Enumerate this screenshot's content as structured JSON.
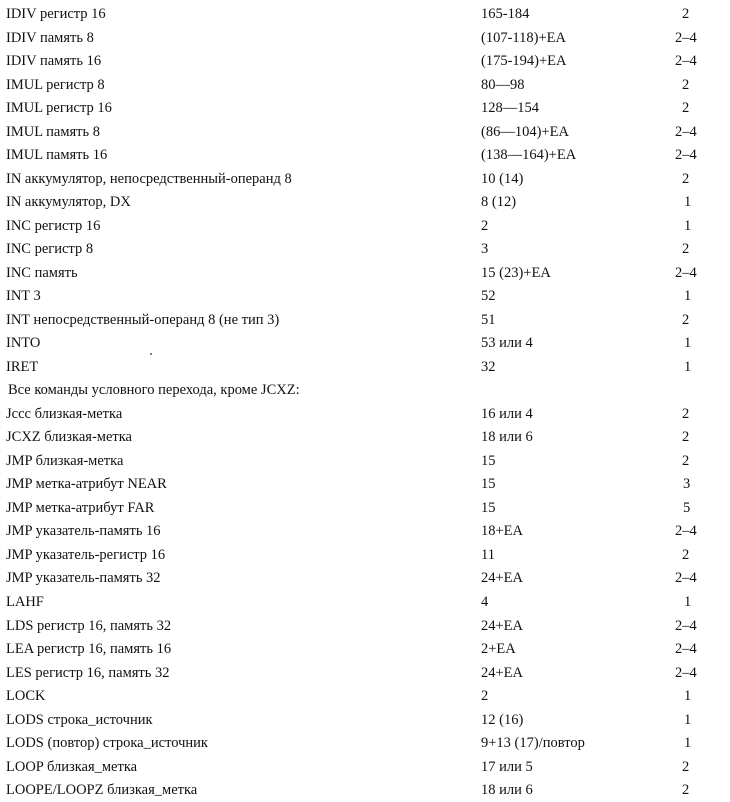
{
  "rows": [
    {
      "instr": "IDIV регистр 16",
      "timing": "165-184",
      "bytes": "2"
    },
    {
      "instr": "IDIV память 8",
      "timing": "(107-118)+EA",
      "bytes": "2–4"
    },
    {
      "instr": "IDIV память 16",
      "timing": "(175-194)+EA",
      "bytes": "2–4"
    },
    {
      "instr": "IMUL регистр 8",
      "timing": "80—98",
      "bytes": "2"
    },
    {
      "instr": "IMUL регистр 16",
      "timing": "128—154",
      "bytes": "2"
    },
    {
      "instr": "IMUL память 8",
      "timing": "(86—104)+EA",
      "bytes": "2–4"
    },
    {
      "instr": "IMUL память 16",
      "timing": "(138—164)+EA",
      "bytes": "2–4"
    },
    {
      "instr": "IN аккумулятор, непосредственный-операнд 8",
      "timing": "10 (14)",
      "bytes": "2"
    },
    {
      "instr": "IN аккумулятор, DX",
      "timing": "8 (12)",
      "bytes": "1"
    },
    {
      "instr": "INC регистр 16",
      "timing": "2",
      "bytes": "1"
    },
    {
      "instr": "INC регистр 8",
      "timing": "3",
      "bytes": "2"
    },
    {
      "instr": "INC память",
      "timing": "15 (23)+EA",
      "bytes": "2–4"
    },
    {
      "instr": "INT 3",
      "timing": "52",
      "bytes": "1"
    },
    {
      "instr": "INT непосредственный-операнд 8 (не тип 3)",
      "timing": "51",
      "bytes": "2"
    },
    {
      "instr": "INTO",
      "timing": "53 или 4",
      "bytes": "1"
    },
    {
      "instr": "IRET",
      "timing": "32",
      "bytes": "1"
    },
    {
      "instr": "Все команды условного перехода, кроме JCXZ:",
      "timing": "",
      "bytes": ""
    },
    {
      "instr": "Jccc близкая-метка",
      "timing": "16 или 4",
      "bytes": "2"
    },
    {
      "instr": "JCXZ близкая-метка",
      "timing": "18 или 6",
      "bytes": "2"
    },
    {
      "instr": "JMP близкая-метка",
      "timing": "15",
      "bytes": "2"
    },
    {
      "instr": "JMP метка-атрибут NEAR",
      "timing": "15",
      "bytes": "3"
    },
    {
      "instr": "JMP метка-атрибут FAR",
      "timing": "15",
      "bytes": "5"
    },
    {
      "instr": "JMP указатель-память 16",
      "timing": "18+EA",
      "bytes": "2–4"
    },
    {
      "instr": "JMP указатель-регистр 16",
      "timing": "11",
      "bytes": "2"
    },
    {
      "instr": "JMP указатель-память 32",
      "timing": "24+EA",
      "bytes": "2–4"
    },
    {
      "instr": "LAHF",
      "timing": "4",
      "bytes": "1"
    },
    {
      "instr": "LDS регистр 16, память 32",
      "timing": "24+EA",
      "bytes": "2–4"
    },
    {
      "instr": "LEA регистр 16, память 16",
      "timing": "2+EA",
      "bytes": "2–4"
    },
    {
      "instr": "LES регистр 16, память 32",
      "timing": "24+EA",
      "bytes": "2–4"
    },
    {
      "instr": "LOCK",
      "timing": "2",
      "bytes": "1"
    },
    {
      "instr": "LODS строка_источник",
      "timing": "12 (16)",
      "bytes": "1"
    },
    {
      "instr": "LODS (повтор) строка_источник",
      "timing": "9+13 (17)/повтор",
      "bytes": "1"
    },
    {
      "instr": "LOOP близкая_метка",
      "timing": "17 или 5",
      "bytes": "2"
    },
    {
      "instr": "LOOPE/LOOPZ близкая_метка",
      "timing": "18 или 6",
      "bytes": "2"
    }
  ]
}
